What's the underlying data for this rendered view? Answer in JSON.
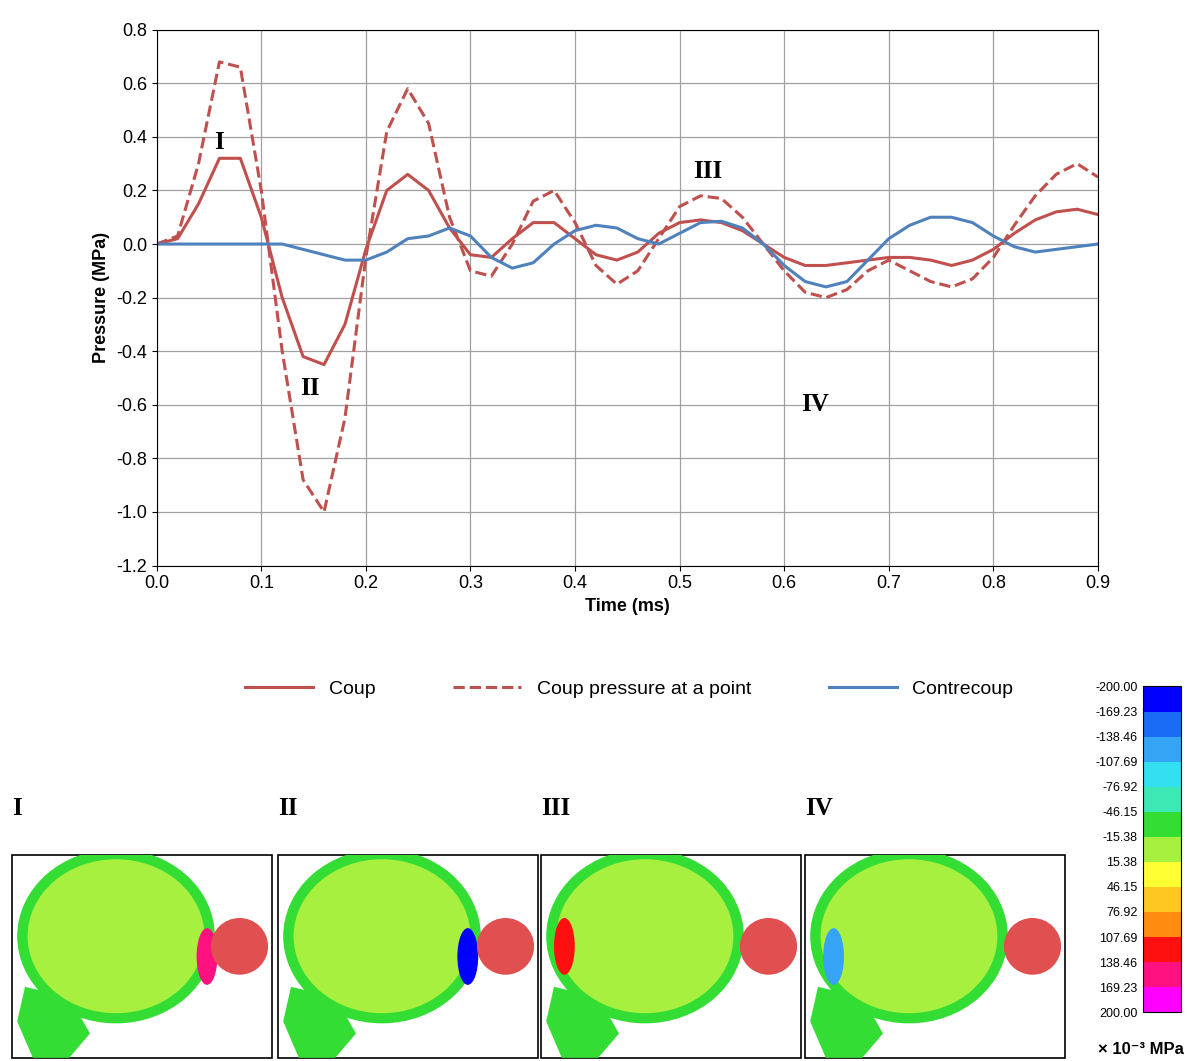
{
  "chart_data": {
    "type": "line",
    "x_label": "Time (ms)",
    "y_label": "Pressure (MPa)",
    "x": [
      0.0,
      0.02,
      0.04,
      0.06,
      0.08,
      0.1,
      0.12,
      0.14,
      0.16,
      0.18,
      0.2,
      0.22,
      0.24,
      0.26,
      0.28,
      0.3,
      0.32,
      0.34,
      0.36,
      0.38,
      0.4,
      0.42,
      0.44,
      0.46,
      0.48,
      0.5,
      0.52,
      0.54,
      0.56,
      0.58,
      0.6,
      0.62,
      0.64,
      0.66,
      0.68,
      0.7,
      0.72,
      0.74,
      0.76,
      0.78,
      0.8,
      0.82,
      0.84,
      0.86,
      0.88,
      0.9
    ],
    "xlim": [
      0.0,
      0.9
    ],
    "xticks": [
      0.0,
      0.1,
      0.2,
      0.3,
      0.4,
      0.5,
      0.6,
      0.7,
      0.8,
      0.9
    ],
    "ylim": [
      -1.2,
      0.8
    ],
    "yticks": [
      -1.2,
      -1.0,
      -0.8,
      -0.6,
      -0.4,
      -0.2,
      0.0,
      0.2,
      0.4,
      0.6,
      0.8
    ],
    "grid": true,
    "legend": "upper center",
    "series": [
      {
        "name": "Coup",
        "color": "#c0504d",
        "line_style": "solid",
        "values": [
          0.0,
          0.02,
          0.15,
          0.32,
          0.32,
          0.1,
          -0.2,
          -0.42,
          -0.45,
          -0.3,
          -0.02,
          0.2,
          0.26,
          0.2,
          0.06,
          -0.04,
          -0.05,
          0.02,
          0.08,
          0.08,
          0.02,
          -0.04,
          -0.06,
          -0.03,
          0.04,
          0.08,
          0.09,
          0.08,
          0.05,
          0.0,
          -0.05,
          -0.08,
          -0.08,
          -0.07,
          -0.06,
          -0.05,
          -0.05,
          -0.06,
          -0.08,
          -0.06,
          -0.02,
          0.04,
          0.09,
          0.12,
          0.13,
          0.11
        ]
      },
      {
        "name": "Coup pressure at a point",
        "color": "#c0504d",
        "line_style": "dashed",
        "values": [
          0.0,
          0.03,
          0.3,
          0.68,
          0.66,
          0.2,
          -0.4,
          -0.88,
          -1.0,
          -0.65,
          -0.05,
          0.42,
          0.58,
          0.45,
          0.1,
          -0.1,
          -0.12,
          0.0,
          0.16,
          0.2,
          0.08,
          -0.08,
          -0.15,
          -0.1,
          0.02,
          0.14,
          0.18,
          0.17,
          0.1,
          0.0,
          -0.1,
          -0.18,
          -0.2,
          -0.17,
          -0.1,
          -0.06,
          -0.1,
          -0.14,
          -0.16,
          -0.13,
          -0.05,
          0.07,
          0.18,
          0.26,
          0.3,
          0.25
        ]
      },
      {
        "name": "Contrecoup",
        "color": "#4f81bd",
        "line_style": "solid",
        "values": [
          0.0,
          0.0,
          0.0,
          0.0,
          0.0,
          0.0,
          0.0,
          -0.02,
          -0.04,
          -0.06,
          -0.06,
          -0.03,
          0.02,
          0.03,
          0.06,
          0.03,
          -0.05,
          -0.09,
          -0.07,
          0.0,
          0.05,
          0.07,
          0.06,
          0.02,
          0.0,
          0.04,
          0.08,
          0.085,
          0.06,
          0.0,
          -0.08,
          -0.14,
          -0.16,
          -0.14,
          -0.06,
          0.02,
          0.07,
          0.1,
          0.1,
          0.08,
          0.03,
          -0.01,
          -0.03,
          -0.02,
          -0.01,
          0.0
        ]
      }
    ],
    "annotations": [
      {
        "text": "I",
        "x": 0.06,
        "y": 0.38
      },
      {
        "text": "II",
        "x": 0.146,
        "y": -0.54
      },
      {
        "text": "III",
        "x": 0.527,
        "y": 0.27
      },
      {
        "text": "IV",
        "x": 0.629,
        "y": -0.6
      }
    ]
  },
  "panels": [
    {
      "label": "I"
    },
    {
      "label": "II"
    },
    {
      "label": "III"
    },
    {
      "label": "IV"
    }
  ],
  "colorbar": {
    "label": "× 10⁻³ MPa",
    "range": [
      -200,
      200
    ],
    "ticks": [
      {
        "value": -200,
        "label": "-200.00"
      },
      {
        "value": -169.23,
        "label": "-169.23"
      },
      {
        "value": -138.46,
        "label": "-138.46"
      },
      {
        "value": -107.69,
        "label": "-107.69"
      },
      {
        "value": -76.92,
        "label": "-76.92"
      },
      {
        "value": -46.15,
        "label": "-46.15"
      },
      {
        "value": -15.38,
        "label": "-15.38"
      },
      {
        "value": 15.38,
        "label": "15.38"
      },
      {
        "value": 46.15,
        "label": "46.15"
      },
      {
        "value": 76.92,
        "label": "76.92"
      },
      {
        "value": 107.69,
        "label": "107.69"
      },
      {
        "value": 138.46,
        "label": "138.46"
      },
      {
        "value": 169.23,
        "label": "169.23"
      },
      {
        "value": 200,
        "label": "200.00"
      }
    ],
    "colors": [
      "#0000ff",
      "#1a6cf5",
      "#35a4f5",
      "#32e0f0",
      "#3de8b4",
      "#33dd33",
      "#a8f040",
      "#ffff33",
      "#ffc820",
      "#ff8c10",
      "#ff1010",
      "#ff1080",
      "#ff00ff"
    ]
  }
}
